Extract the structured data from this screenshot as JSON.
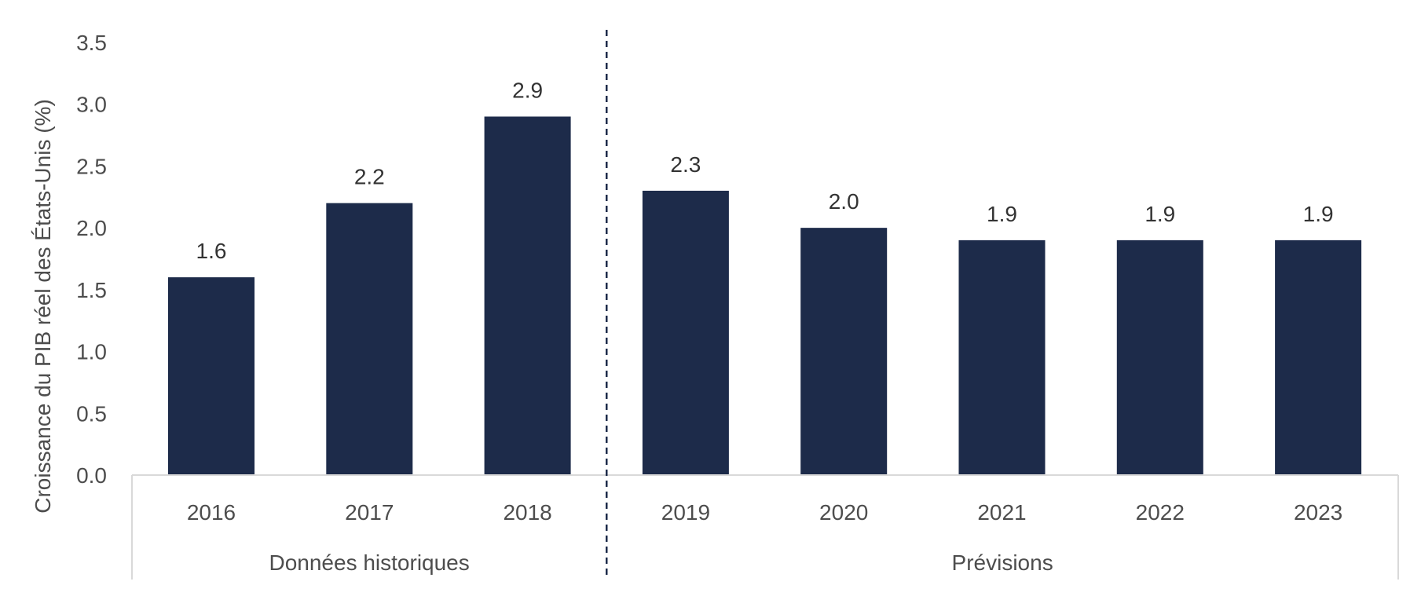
{
  "chart_data": {
    "type": "bar",
    "title": "",
    "xlabel": "",
    "ylabel": "Croissance du PIB réel des États-Unis (%)",
    "ylim": [
      0,
      3.5
    ],
    "yticks": [
      "0.0",
      "0.5",
      "1.0",
      "1.5",
      "2.0",
      "2.5",
      "3.0",
      "3.5"
    ],
    "categories": [
      "2016",
      "2017",
      "2018",
      "2019",
      "2020",
      "2021",
      "2022",
      "2023"
    ],
    "values": [
      1.6,
      2.2,
      2.9,
      2.3,
      2.0,
      1.9,
      1.9,
      1.9
    ],
    "data_labels": [
      "1.6",
      "2.2",
      "2.9",
      "2.3",
      "2.0",
      "1.9",
      "1.9",
      "1.9"
    ],
    "groups": [
      {
        "label": "Données historiques",
        "categories": [
          "2016",
          "2017",
          "2018"
        ]
      },
      {
        "label": "Prévisions",
        "categories": [
          "2019",
          "2020",
          "2021",
          "2022",
          "2023"
        ]
      }
    ],
    "divider": "dashed line between 2018 and 2019",
    "grid": false,
    "legend": "none",
    "colors": {
      "bar": "#1d2b4a",
      "axis": "#d9d9d9",
      "divider": "#1d2b4a"
    }
  }
}
